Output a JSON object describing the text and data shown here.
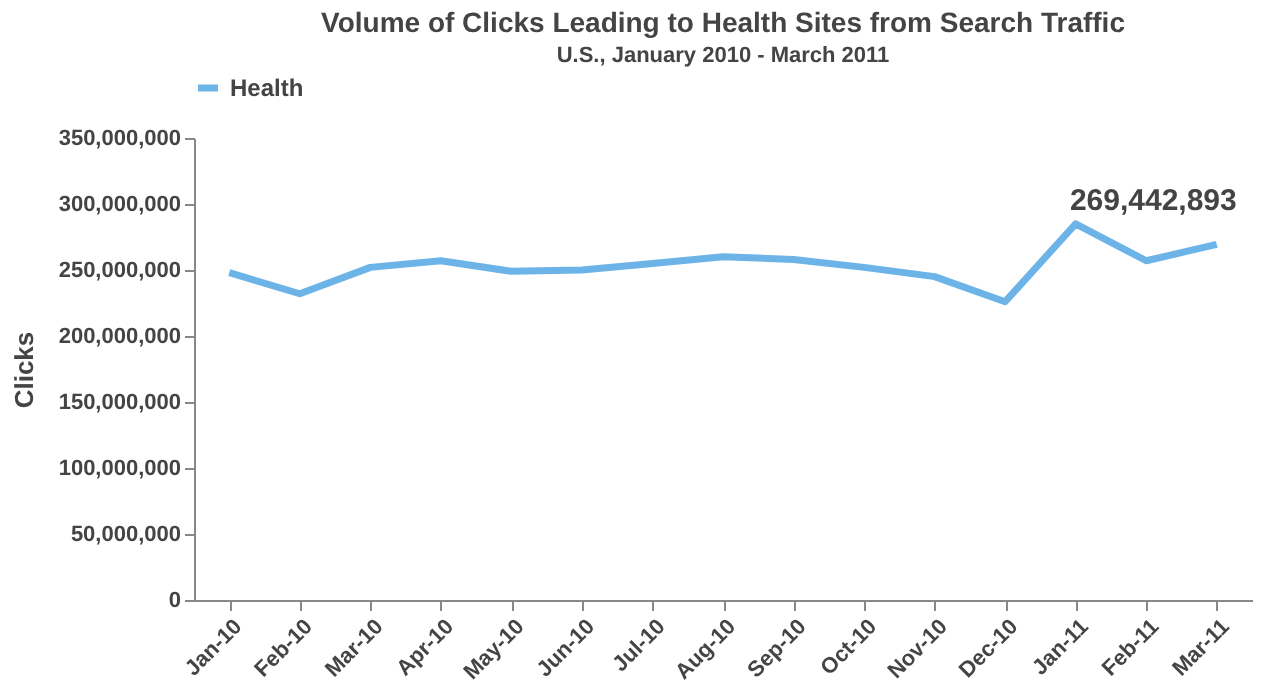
{
  "chart_data": {
    "type": "line",
    "title": "Volume of Clicks Leading to Health Sites from Search Traffic",
    "subtitle": "U.S., January 2010 - March 2011",
    "ylabel": "Clicks",
    "categories": [
      "Jan-10",
      "Feb-10",
      "Mar-10",
      "Apr-10",
      "May-10",
      "Jun-10",
      "Jul-10",
      "Aug-10",
      "Sep-10",
      "Oct-10",
      "Nov-10",
      "Dec-10",
      "Jan-11",
      "Feb-11",
      "Mar-11"
    ],
    "series": [
      {
        "name": "Health",
        "color": "#6cb4e8",
        "values": [
          248000000,
          232000000,
          252000000,
          257000000,
          249000000,
          250000000,
          255000000,
          260000000,
          258000000,
          252000000,
          245000000,
          226000000,
          285000000,
          257000000,
          269442893
        ]
      }
    ],
    "ylim": [
      0,
      350000000
    ],
    "yticks": [
      0,
      {
        "value": 50000000,
        "label": "50,000,000"
      },
      {
        "value": 100000000,
        "label": "100,000,000"
      },
      {
        "value": 150000000,
        "label": "150,000,000"
      },
      {
        "value": 200000000,
        "label": "200,000,000"
      },
      {
        "value": 250000000,
        "label": "250,000,000"
      },
      {
        "value": 300000000,
        "label": "300,000,000"
      },
      {
        "value": 350000000,
        "label": "350,000,000"
      }
    ],
    "annotations": [
      {
        "text": "269,442,893",
        "x": "Mar-11",
        "y": 269442893
      }
    ],
    "legend": "top",
    "grid": false,
    "marker": "none",
    "line_style": "solid"
  }
}
